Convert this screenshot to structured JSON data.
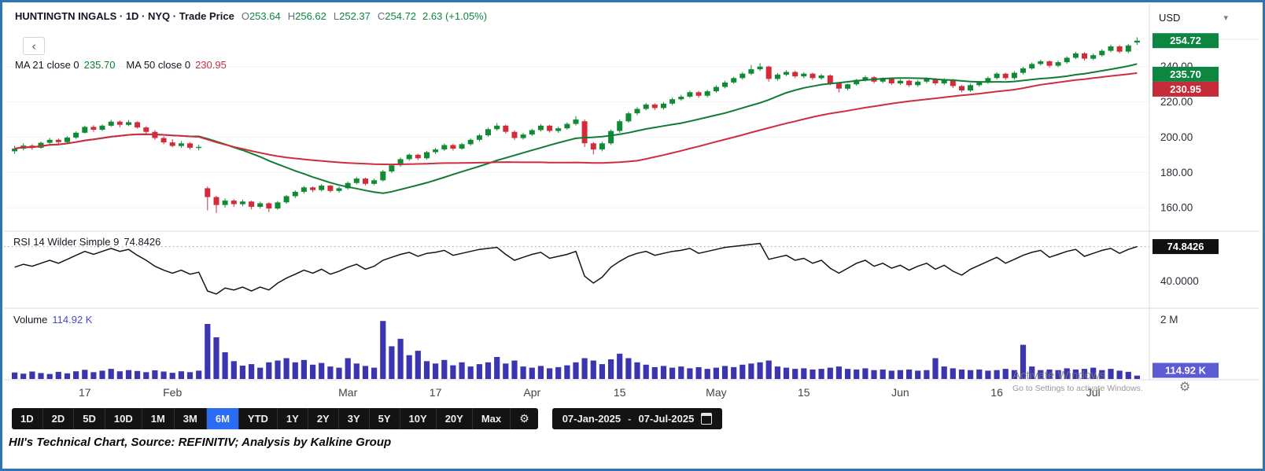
{
  "header": {
    "title": "HUNTINGTN INGALS · 1D · NYQ · Trade Price",
    "o_label": "O",
    "o_value": "253.64",
    "h_label": "H",
    "h_value": "256.62",
    "l_label": "L",
    "l_value": "252.37",
    "c_label": "C",
    "c_value": "254.72",
    "change": "2.63 (+1.05%)"
  },
  "icons": {
    "back_chevron": "‹",
    "dropdown_caret": "▾",
    "gear": "⚙"
  },
  "legends": {
    "ma1_label": "MA 21 close 0",
    "ma1_value": "235.70",
    "ma2_label": "MA 50 close 0",
    "ma2_value": "230.95",
    "rsi_label": "RSI 14 Wilder Simple 9",
    "rsi_value": "74.8426",
    "vol_label": "Volume",
    "vol_value": "114.92 K"
  },
  "axis": {
    "currency": "USD"
  },
  "toolbar": {
    "ranges": [
      "1D",
      "2D",
      "5D",
      "10D",
      "1M",
      "3M",
      "6M",
      "YTD",
      "1Y",
      "2Y",
      "3Y",
      "5Y",
      "10Y",
      "20Y",
      "Max"
    ],
    "active": "6M",
    "date_from": "07-Jan-2025",
    "date_sep": "-",
    "date_to": "07-Jul-2025"
  },
  "caption": {
    "text": "HII's Technical Chart, Source: REFINITIV; Analysis by Kalkine Group"
  },
  "watermark": {
    "line1": "Activate Windows",
    "line2": "Go to Settings to activate Windows."
  },
  "colors": {
    "up": "#108a34",
    "down": "#d32b3a",
    "ma_fast": "#0e7d33",
    "ma_slow": "#cf2e3f",
    "volume_bar": "#3b36b0",
    "rsi_line": "#141414",
    "badge_last": "#0c8640",
    "badge_ma_fast": "#0c8640",
    "badge_ma_slow": "#c62b39",
    "badge_rsi": "#101010",
    "badge_volume": "#5d5bd4",
    "active_range": "#2a6cf4",
    "frame_border": "#2e75b6"
  },
  "chart_data": {
    "type": "candlestick",
    "title": "HUNTINGTN INGALS · 1D · NYQ · Trade Price",
    "x_range": [
      "07-Jan-2025",
      "07-Jul-2025"
    ],
    "price_axis": {
      "min": 148,
      "max": 272,
      "ticks": [
        160,
        180,
        200,
        220,
        240
      ]
    },
    "price_badges": [
      {
        "label": "254.72",
        "value": 254.72,
        "color_key": "badge_last"
      },
      {
        "label": "235.70",
        "value": 235.7,
        "color_key": "badge_ma_fast"
      },
      {
        "label": "230.95",
        "value": 230.95,
        "color_key": "badge_ma_slow"
      }
    ],
    "ma": [
      {
        "name": "MA 21",
        "period": 21,
        "last": 235.7,
        "color_key": "ma_fast"
      },
      {
        "name": "MA 50",
        "period": 50,
        "last": 230.95,
        "color_key": "ma_slow"
      }
    ],
    "time_ticks": [
      {
        "i": 8,
        "label": "17"
      },
      {
        "i": 18,
        "label": "Feb"
      },
      {
        "i": 38,
        "label": "Mar"
      },
      {
        "i": 48,
        "label": "17"
      },
      {
        "i": 59,
        "label": "Apr"
      },
      {
        "i": 69,
        "label": "15"
      },
      {
        "i": 80,
        "label": "May"
      },
      {
        "i": 90,
        "label": "15"
      },
      {
        "i": 101,
        "label": "Jun"
      },
      {
        "i": 112,
        "label": "16"
      },
      {
        "i": 123,
        "label": "Jul"
      }
    ],
    "candles": [
      [
        192,
        195,
        190.5,
        193.5
      ],
      [
        193.5,
        196.5,
        192.5,
        195.2
      ],
      [
        195.2,
        196,
        192.8,
        194
      ],
      [
        194,
        197.5,
        193.5,
        196.8
      ],
      [
        196.8,
        199.5,
        196,
        198.5
      ],
      [
        198.5,
        199.2,
        195.8,
        197.2
      ],
      [
        197.2,
        200.5,
        196.5,
        199.8
      ],
      [
        199.8,
        203.2,
        199,
        202.5
      ],
      [
        202.5,
        206.5,
        202,
        205.8
      ],
      [
        205.8,
        206.8,
        203,
        204.2
      ],
      [
        204.2,
        207.2,
        203.5,
        206.5
      ],
      [
        206.5,
        209.8,
        205.8,
        208.8
      ],
      [
        208.8,
        209.5,
        205.5,
        207
      ],
      [
        207,
        209.6,
        206.2,
        208.5
      ],
      [
        208.5,
        209,
        204.8,
        205.5
      ],
      [
        205.5,
        206.2,
        202,
        203
      ],
      [
        203,
        204,
        198.5,
        199.5
      ],
      [
        199.5,
        200.5,
        196,
        197
      ],
      [
        197,
        198.8,
        194.2,
        195
      ],
      [
        195,
        197.8,
        194,
        196.5
      ],
      [
        196.5,
        197.2,
        193,
        194
      ],
      [
        194,
        195.8,
        192.5,
        194.5
      ],
      [
        171,
        172,
        158.5,
        166
      ],
      [
        166,
        166.8,
        157,
        161.5
      ],
      [
        161.5,
        165.2,
        160,
        164
      ],
      [
        164,
        164.8,
        160.5,
        162
      ],
      [
        162,
        164.6,
        160.8,
        163.5
      ],
      [
        163.5,
        164,
        159,
        160.5
      ],
      [
        160.5,
        163.4,
        159.5,
        162.5
      ],
      [
        162.5,
        163,
        157.5,
        159.5
      ],
      [
        159.5,
        163.8,
        158.8,
        163
      ],
      [
        163,
        167.2,
        162.2,
        166.5
      ],
      [
        166.5,
        169.8,
        165.5,
        169
      ],
      [
        169,
        172.2,
        168,
        171.5
      ],
      [
        171.5,
        172,
        168.8,
        170
      ],
      [
        170,
        173.4,
        169.2,
        172.5
      ],
      [
        172.5,
        173,
        168.6,
        169.5
      ],
      [
        169.5,
        172,
        168.5,
        171
      ],
      [
        171,
        174.8,
        170.2,
        174
      ],
      [
        174,
        177.4,
        173.2,
        176.5
      ],
      [
        176.5,
        177,
        172.6,
        173.5
      ],
      [
        173.5,
        176.4,
        172.8,
        175.5
      ],
      [
        175.5,
        181.4,
        174.8,
        180.5
      ],
      [
        180.5,
        184.8,
        179.6,
        184
      ],
      [
        184,
        188.4,
        183.2,
        187.5
      ],
      [
        187.5,
        190.8,
        186.6,
        190
      ],
      [
        190,
        190.6,
        186.9,
        188
      ],
      [
        188,
        192.3,
        187.2,
        191.5
      ],
      [
        191.5,
        193.9,
        190.4,
        193
      ],
      [
        193,
        196.4,
        192.2,
        195.5
      ],
      [
        195.5,
        196.2,
        192.4,
        193.5
      ],
      [
        193.5,
        196.8,
        192.8,
        196
      ],
      [
        196,
        199.4,
        195.2,
        198.5
      ],
      [
        198.5,
        201.9,
        197.6,
        201
      ],
      [
        201,
        205.3,
        200.2,
        204.5
      ],
      [
        204.5,
        208,
        203.6,
        206.5
      ],
      [
        206.5,
        207.2,
        202,
        203
      ],
      [
        203,
        203.8,
        198.4,
        199.5
      ],
      [
        199.5,
        202.4,
        198.6,
        201.5
      ],
      [
        201.5,
        204.8,
        200.6,
        204
      ],
      [
        204,
        207.4,
        203.2,
        206.5
      ],
      [
        206.5,
        207,
        202.6,
        203.5
      ],
      [
        203.5,
        205.9,
        202.4,
        205
      ],
      [
        205,
        208.4,
        204.2,
        207.5
      ],
      [
        207.5,
        211.9,
        206.6,
        210
      ],
      [
        209,
        210,
        194.4,
        196.5
      ],
      [
        196.5,
        197.2,
        190.2,
        193
      ],
      [
        193,
        197.4,
        192,
        196.5
      ],
      [
        196.5,
        204.4,
        195.6,
        203.5
      ],
      [
        203.5,
        210,
        202.4,
        209
      ],
      [
        209,
        214.4,
        208.2,
        213.5
      ],
      [
        213.5,
        217,
        212.4,
        216
      ],
      [
        216,
        219.4,
        215.2,
        218.5
      ],
      [
        218.5,
        219.2,
        215.4,
        216.5
      ],
      [
        216.5,
        219.9,
        215.6,
        219
      ],
      [
        219,
        222.4,
        218.2,
        221.5
      ],
      [
        221.5,
        224,
        220.6,
        223
      ],
      [
        223,
        226.4,
        222.2,
        225.5
      ],
      [
        225.5,
        226.2,
        222.4,
        223.5
      ],
      [
        223.5,
        226.9,
        222.6,
        226
      ],
      [
        226,
        229.4,
        225.2,
        228.5
      ],
      [
        228.5,
        231.9,
        227.6,
        231
      ],
      [
        231,
        234.4,
        230.2,
        233.5
      ],
      [
        233.5,
        236.9,
        232.6,
        236
      ],
      [
        236,
        241,
        235.2,
        238.5
      ],
      [
        238.5,
        242,
        237.6,
        240
      ],
      [
        240,
        240.5,
        231.5,
        233
      ],
      [
        233,
        236.4,
        232,
        235.5
      ],
      [
        235.5,
        238,
        234.6,
        237
      ],
      [
        237,
        237.6,
        233.5,
        234.5
      ],
      [
        234.5,
        236.9,
        233.4,
        236
      ],
      [
        236,
        236.6,
        232.5,
        233.5
      ],
      [
        233.5,
        235.9,
        232.6,
        235
      ],
      [
        235,
        235.6,
        229.5,
        230.5
      ],
      [
        230.5,
        231.2,
        225.4,
        227.5
      ],
      [
        227.5,
        230.4,
        226.6,
        230
      ],
      [
        230,
        233,
        229.2,
        232.5
      ],
      [
        232.5,
        234.9,
        231.6,
        234
      ],
      [
        234,
        234.6,
        230.5,
        231.5
      ],
      [
        231.5,
        233.9,
        230.6,
        233
      ],
      [
        233,
        233.6,
        229.5,
        230.5
      ],
      [
        230.5,
        232.9,
        229.6,
        232
      ],
      [
        232,
        232.6,
        228.5,
        229.5
      ],
      [
        229.5,
        232.4,
        228.6,
        231.5
      ],
      [
        231.5,
        233.9,
        230.6,
        233
      ],
      [
        233,
        233.6,
        229.4,
        230.5
      ],
      [
        230.5,
        233.4,
        229.6,
        232.5
      ],
      [
        232.5,
        233,
        227.9,
        229
      ],
      [
        229,
        229.6,
        225.4,
        226.5
      ],
      [
        226.5,
        230.4,
        225.6,
        229.5
      ],
      [
        229.5,
        231.9,
        228.6,
        231
      ],
      [
        231,
        234.4,
        230.2,
        233.5
      ],
      [
        233.5,
        236.9,
        232.6,
        236
      ],
      [
        236,
        236.6,
        232.5,
        233.5
      ],
      [
        233.5,
        237.4,
        232.6,
        236.5
      ],
      [
        236.5,
        239.9,
        235.6,
        239
      ],
      [
        239,
        242.4,
        238.2,
        241.5
      ],
      [
        241.5,
        243.9,
        240.6,
        243
      ],
      [
        243,
        243.6,
        239.5,
        240.5
      ],
      [
        240.5,
        243.4,
        239.6,
        242.5
      ],
      [
        242.5,
        245.9,
        241.6,
        245
      ],
      [
        245,
        248.4,
        244.2,
        247.5
      ],
      [
        247.5,
        248.2,
        243.5,
        244.5
      ],
      [
        244.5,
        247.4,
        243.6,
        246.5
      ],
      [
        246.5,
        249.9,
        245.6,
        249
      ],
      [
        249,
        252.4,
        248.2,
        251.5
      ],
      [
        251.5,
        252.2,
        247.6,
        248.5
      ],
      [
        248.5,
        252.9,
        247.6,
        252
      ],
      [
        253.64,
        256.62,
        252.37,
        254.72
      ]
    ],
    "rsi": {
      "values": [
        54,
        57,
        55,
        58,
        61,
        58,
        62,
        66,
        70,
        67,
        70,
        73,
        70,
        72,
        66,
        61,
        55,
        51,
        48,
        51,
        47,
        49,
        30,
        27,
        33,
        31,
        34,
        30,
        34,
        31,
        38,
        43,
        47,
        51,
        48,
        52,
        47,
        50,
        54,
        57,
        52,
        55,
        61,
        64,
        67,
        69,
        65,
        68,
        69,
        71,
        66,
        68,
        70,
        72,
        73,
        74,
        67,
        61,
        64,
        67,
        69,
        63,
        65,
        67,
        70,
        45,
        38,
        44,
        54,
        60,
        65,
        68,
        70,
        66,
        68,
        70,
        71,
        73,
        68,
        70,
        72,
        74,
        75,
        76,
        77,
        78,
        62,
        64,
        66,
        61,
        63,
        58,
        61,
        53,
        48,
        53,
        58,
        61,
        55,
        58,
        53,
        56,
        51,
        55,
        58,
        52,
        56,
        50,
        46,
        52,
        56,
        60,
        64,
        58,
        62,
        66,
        69,
        71,
        64,
        67,
        70,
        72,
        65,
        68,
        71,
        73,
        68,
        72,
        74.84
      ],
      "axis": {
        "min": 15,
        "max": 88
      },
      "tick": 40,
      "tick_label": "40.0000",
      "badge_value": 74.8426,
      "badge_label": "74.8426"
    },
    "volume": {
      "values_k": [
        220,
        180,
        250,
        200,
        170,
        240,
        190,
        260,
        310,
        230,
        280,
        340,
        260,
        300,
        270,
        230,
        290,
        250,
        210,
        260,
        230,
        280,
        1850,
        1400,
        900,
        600,
        450,
        500,
        380,
        560,
        620,
        700,
        560,
        640,
        480,
        540,
        420,
        380,
        700,
        520,
        440,
        380,
        1950,
        1100,
        1350,
        800,
        950,
        600,
        520,
        640,
        460,
        560,
        420,
        500,
        560,
        740,
        520,
        620,
        420,
        380,
        440,
        360,
        400,
        460,
        560,
        700,
        620,
        500,
        660,
        850,
        700,
        560,
        480,
        400,
        440,
        380,
        420,
        360,
        400,
        340,
        380,
        440,
        400,
        480,
        520,
        560,
        620,
        420,
        380,
        340,
        360,
        320,
        340,
        380,
        420,
        340,
        320,
        360,
        300,
        320,
        280,
        300,
        320,
        280,
        300,
        700,
        420,
        360,
        320,
        300,
        320,
        280,
        300,
        340,
        300,
        1150,
        420,
        300,
        320,
        300,
        360,
        320,
        340,
        380,
        300,
        340,
        280,
        240,
        114.92
      ],
      "axis_max_k": 2300,
      "tick_value_k": 2000,
      "tick_label": "2 M",
      "badge_label": "114.92 K",
      "badge_value_k": 114.92
    }
  }
}
